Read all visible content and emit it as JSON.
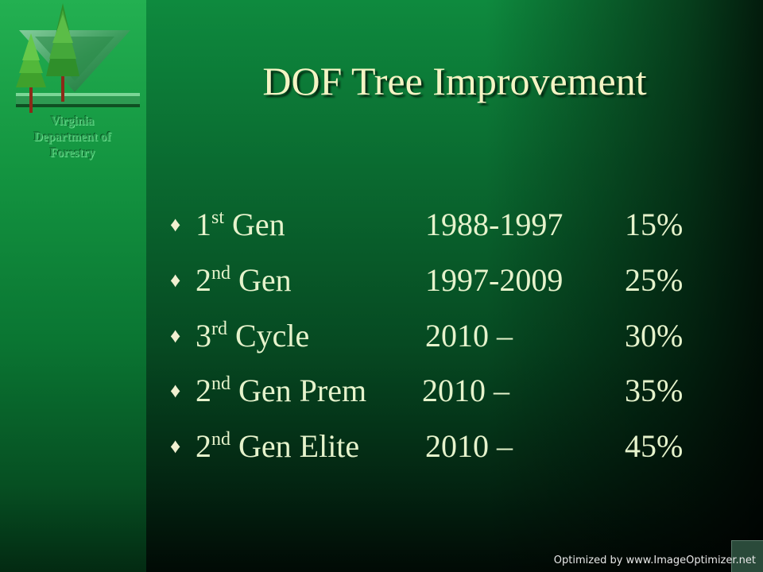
{
  "slide": {
    "title": "DOF Tree Improvement",
    "logo": {
      "lines": [
        "Virginia",
        "Department of",
        "Forestry"
      ]
    },
    "bullet_icon": "diamond-bullet",
    "rows": [
      {
        "base": "1",
        "sup": "st",
        "rest": " Gen",
        "period": "1988-1997",
        "percent": "15%"
      },
      {
        "base": "2",
        "sup": "nd",
        "rest": " Gen",
        "period": "1997-2009",
        "percent": "25%"
      },
      {
        "base": "3",
        "sup": "rd",
        "rest": " Cycle",
        "period": "2010 –",
        "percent": "30%"
      },
      {
        "base": "2",
        "sup": "nd",
        "rest": " Gen Prem",
        "period": "2010 –",
        "percent": "35%"
      },
      {
        "base": "2",
        "sup": "nd",
        "rest": " Gen Elite",
        "period": "2010 –",
        "percent": "45%"
      }
    ]
  },
  "watermark": "Optimized by www.ImageOptimizer.net"
}
